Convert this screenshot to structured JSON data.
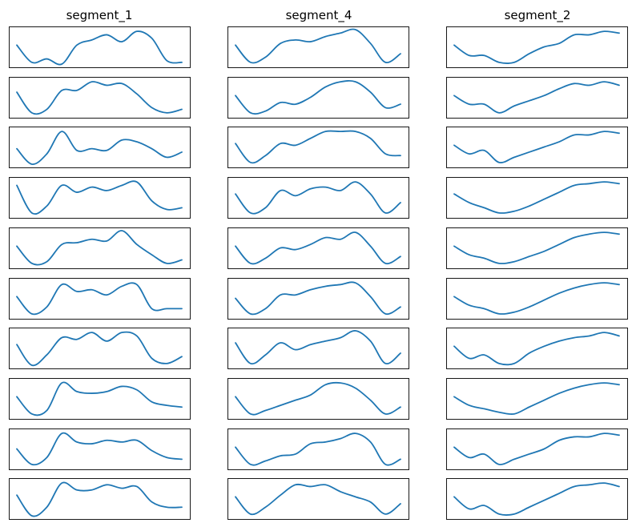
{
  "figure": {
    "column_titles": [
      "segment_1",
      "segment_4",
      "segment_2"
    ],
    "line_color": "#1f77b4",
    "background": "#ffffff",
    "axes_ticks": "none",
    "grid": false,
    "legend": "none"
  },
  "chart_data": {
    "type": "line",
    "layout": "small-multiples",
    "rows": 10,
    "columns": [
      "segment_1",
      "segment_4",
      "segment_2"
    ],
    "ylim_per_panel": "auto",
    "note_values": "normalized 0-1 per panel, sampled at 12 equally spaced points",
    "panels": [
      [
        [
          0.55,
          0.05,
          0.15,
          0.0,
          0.55,
          0.7,
          0.85,
          0.65,
          0.95,
          0.75,
          0.1,
          0.05
        ],
        [
          0.65,
          0.05,
          0.15,
          0.7,
          0.7,
          0.95,
          0.85,
          0.9,
          0.6,
          0.2,
          0.05,
          0.15
        ],
        [
          0.45,
          0.0,
          0.3,
          0.95,
          0.4,
          0.45,
          0.4,
          0.7,
          0.65,
          0.45,
          0.2,
          0.35
        ],
        [
          0.85,
          0.05,
          0.25,
          0.85,
          0.65,
          0.8,
          0.7,
          0.85,
          0.95,
          0.4,
          0.15,
          0.2
        ],
        [
          0.55,
          0.05,
          0.1,
          0.6,
          0.65,
          0.75,
          0.7,
          1.0,
          0.6,
          0.3,
          0.05,
          0.15
        ],
        [
          0.55,
          0.05,
          0.25,
          0.9,
          0.7,
          0.75,
          0.6,
          0.85,
          0.9,
          0.2,
          0.2,
          0.2
        ],
        [
          0.6,
          0.0,
          0.3,
          0.8,
          0.75,
          0.95,
          0.7,
          0.95,
          0.85,
          0.2,
          0.05,
          0.25
        ],
        [
          0.55,
          0.05,
          0.15,
          0.95,
          0.7,
          0.65,
          0.7,
          0.85,
          0.75,
          0.4,
          0.3,
          0.25
        ],
        [
          0.5,
          0.05,
          0.25,
          0.95,
          0.7,
          0.65,
          0.75,
          0.7,
          0.75,
          0.45,
          0.25,
          0.2
        ],
        [
          0.6,
          0.0,
          0.25,
          0.95,
          0.75,
          0.75,
          0.9,
          0.8,
          0.85,
          0.4,
          0.25,
          0.25
        ]
      ],
      [
        [
          0.55,
          0.05,
          0.2,
          0.6,
          0.7,
          0.65,
          0.8,
          0.9,
          1.0,
          0.6,
          0.05,
          0.3
        ],
        [
          0.55,
          0.05,
          0.1,
          0.35,
          0.3,
          0.5,
          0.8,
          0.95,
          0.95,
          0.65,
          0.2,
          0.3
        ],
        [
          0.6,
          0.05,
          0.25,
          0.6,
          0.55,
          0.75,
          0.95,
          0.95,
          0.95,
          0.75,
          0.3,
          0.25
        ],
        [
          0.6,
          0.05,
          0.2,
          0.7,
          0.55,
          0.75,
          0.8,
          0.7,
          0.95,
          0.6,
          0.05,
          0.35
        ],
        [
          0.55,
          0.05,
          0.2,
          0.5,
          0.45,
          0.6,
          0.8,
          0.75,
          0.95,
          0.55,
          0.05,
          0.25
        ],
        [
          0.5,
          0.05,
          0.2,
          0.6,
          0.6,
          0.75,
          0.85,
          0.9,
          0.95,
          0.55,
          0.05,
          0.25
        ],
        [
          0.65,
          0.05,
          0.3,
          0.65,
          0.45,
          0.6,
          0.7,
          0.8,
          1.0,
          0.7,
          0.05,
          0.35
        ],
        [
          0.55,
          0.05,
          0.15,
          0.3,
          0.45,
          0.6,
          0.9,
          0.95,
          0.8,
          0.45,
          0.05,
          0.25
        ],
        [
          0.55,
          0.05,
          0.15,
          0.3,
          0.35,
          0.65,
          0.7,
          0.8,
          0.95,
          0.7,
          0.05,
          0.2
        ],
        [
          0.55,
          0.05,
          0.25,
          0.6,
          0.9,
          0.85,
          0.9,
          0.7,
          0.55,
          0.4,
          0.05,
          0.35
        ]
      ],
      [
        [
          0.55,
          0.25,
          0.25,
          0.05,
          0.05,
          0.3,
          0.5,
          0.6,
          0.85,
          0.85,
          0.95,
          0.9
        ],
        [
          0.55,
          0.3,
          0.3,
          0.05,
          0.25,
          0.4,
          0.55,
          0.75,
          0.9,
          0.85,
          0.95,
          0.85
        ],
        [
          0.55,
          0.3,
          0.4,
          0.05,
          0.2,
          0.35,
          0.5,
          0.65,
          0.85,
          0.85,
          0.95,
          0.9
        ],
        [
          0.6,
          0.35,
          0.2,
          0.05,
          0.1,
          0.25,
          0.45,
          0.65,
          0.85,
          0.9,
          0.95,
          0.9
        ],
        [
          0.55,
          0.3,
          0.2,
          0.05,
          0.1,
          0.25,
          0.4,
          0.6,
          0.8,
          0.9,
          0.95,
          0.9
        ],
        [
          0.55,
          0.3,
          0.2,
          0.05,
          0.1,
          0.25,
          0.45,
          0.65,
          0.8,
          0.9,
          0.95,
          0.9
        ],
        [
          0.55,
          0.2,
          0.3,
          0.05,
          0.05,
          0.35,
          0.55,
          0.7,
          0.8,
          0.85,
          0.95,
          0.85
        ],
        [
          0.55,
          0.3,
          0.2,
          0.1,
          0.05,
          0.25,
          0.45,
          0.65,
          0.8,
          0.9,
          0.95,
          0.9
        ],
        [
          0.55,
          0.25,
          0.35,
          0.05,
          0.2,
          0.35,
          0.5,
          0.75,
          0.85,
          0.85,
          0.95,
          0.9
        ],
        [
          0.55,
          0.2,
          0.3,
          0.05,
          0.05,
          0.25,
          0.45,
          0.65,
          0.85,
          0.9,
          0.95,
          0.85
        ]
      ]
    ]
  }
}
